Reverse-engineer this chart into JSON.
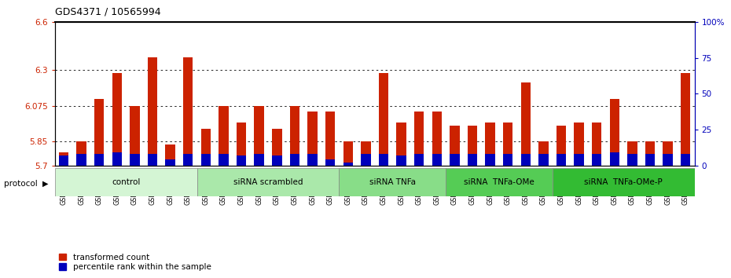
{
  "title": "GDS4371 / 10565994",
  "samples": [
    "GSM790907",
    "GSM790908",
    "GSM790909",
    "GSM790910",
    "GSM790911",
    "GSM790912",
    "GSM790913",
    "GSM790914",
    "GSM790915",
    "GSM790916",
    "GSM790917",
    "GSM790918",
    "GSM790919",
    "GSM790920",
    "GSM790921",
    "GSM790922",
    "GSM790923",
    "GSM790924",
    "GSM790925",
    "GSM790926",
    "GSM790927",
    "GSM790928",
    "GSM790929",
    "GSM790930",
    "GSM790931",
    "GSM790932",
    "GSM790933",
    "GSM790934",
    "GSM790935",
    "GSM790936",
    "GSM790937",
    "GSM790938",
    "GSM790939",
    "GSM790940",
    "GSM790941",
    "GSM790942"
  ],
  "red_values": [
    5.78,
    5.85,
    6.12,
    6.28,
    6.075,
    6.38,
    5.83,
    6.38,
    5.93,
    6.075,
    5.97,
    6.075,
    5.93,
    6.075,
    6.04,
    6.04,
    5.85,
    5.85,
    6.28,
    5.97,
    6.04,
    6.04,
    5.95,
    5.95,
    5.97,
    5.97,
    6.22,
    5.85,
    5.95,
    5.97,
    5.97,
    6.12,
    5.85,
    5.85,
    5.85,
    6.28
  ],
  "blue_values_pct": [
    7,
    8,
    8,
    9,
    8,
    8,
    4,
    8,
    8,
    8,
    7,
    8,
    7,
    8,
    8,
    4,
    2,
    8,
    8,
    7,
    8,
    8,
    8,
    8,
    8,
    8,
    8,
    8,
    8,
    8,
    8,
    9,
    8,
    8,
    8,
    8
  ],
  "groups": [
    {
      "label": "control",
      "start": 0,
      "end": 8,
      "color": "#d4f5d4"
    },
    {
      "label": "siRNA scrambled",
      "start": 8,
      "end": 16,
      "color": "#aae8aa"
    },
    {
      "label": "siRNA TNFa",
      "start": 16,
      "end": 22,
      "color": "#88dd88"
    },
    {
      "label": "siRNA  TNFa-OMe",
      "start": 22,
      "end": 28,
      "color": "#55cc55"
    },
    {
      "label": "siRNA  TNFa-OMe-P",
      "start": 28,
      "end": 36,
      "color": "#33bb33"
    }
  ],
  "y_min": 5.7,
  "y_max": 6.6,
  "y_ticks_left": [
    5.7,
    5.85,
    6.075,
    6.3,
    6.6
  ],
  "y_ticks_right": [
    0,
    25,
    50,
    75,
    100
  ],
  "red_color": "#cc2200",
  "blue_color": "#0000bb",
  "bar_width": 0.55
}
